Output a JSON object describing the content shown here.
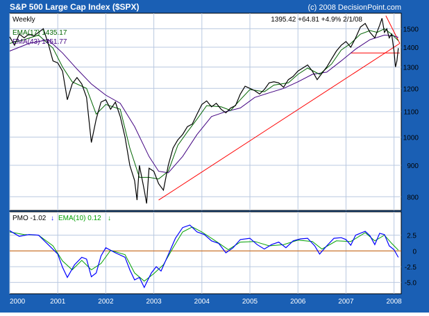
{
  "chart_data": {
    "type": "candlestick_with_indicator",
    "title": "S&P 500 Large Cap Index ($SPX)",
    "copyright": "(c) 2008 DecisionPoint.com",
    "period_label": "Weekly",
    "last_values_text": "1395.42  +64.81  +4.9%  2/1/08",
    "ema17_label": "EMA(17) 1435.17",
    "ema43_label": "EMA(43) 1451.77",
    "colors": {
      "frame": "#1a5fb4",
      "background": "#ffffff",
      "grid": "#b8c8e0",
      "price": "#000000",
      "ema17": "#006400",
      "ema43": "#400080",
      "trendline": "#ff0000",
      "pmo": "#0000ff",
      "pmo_signal": "#00a000",
      "zero_line": "#d06000"
    },
    "price_panel": {
      "y_scale": "log",
      "ylim": [
        760,
        1590
      ],
      "y_ticks": [
        800,
        900,
        1000,
        1100,
        1200,
        1300,
        1400,
        1500
      ],
      "weekly_closes": [
        [
          2000.0,
          1455
        ],
        [
          2000.1,
          1410
        ],
        [
          2000.2,
          1470
        ],
        [
          2000.3,
          1450
        ],
        [
          2000.4,
          1470
        ],
        [
          2000.5,
          1460
        ],
        [
          2000.6,
          1480
        ],
        [
          2000.7,
          1500
        ],
        [
          2000.8,
          1420
        ],
        [
          2000.9,
          1330
        ],
        [
          2001.0,
          1320
        ],
        [
          2001.1,
          1280
        ],
        [
          2001.2,
          1150
        ],
        [
          2001.3,
          1220
        ],
        [
          2001.4,
          1250
        ],
        [
          2001.5,
          1220
        ],
        [
          2001.6,
          1160
        ],
        [
          2001.7,
          980
        ],
        [
          2001.8,
          1070
        ],
        [
          2001.9,
          1140
        ],
        [
          2002.0,
          1150
        ],
        [
          2002.1,
          1110
        ],
        [
          2002.2,
          1140
        ],
        [
          2002.3,
          1080
        ],
        [
          2002.4,
          1000
        ],
        [
          2002.5,
          900
        ],
        [
          2002.6,
          850
        ],
        [
          2002.65,
          790
        ],
        [
          2002.7,
          900
        ],
        [
          2002.8,
          820
        ],
        [
          2002.85,
          780
        ],
        [
          2002.9,
          890
        ],
        [
          2003.0,
          880
        ],
        [
          2003.1,
          840
        ],
        [
          2003.2,
          820
        ],
        [
          2003.3,
          900
        ],
        [
          2003.4,
          960
        ],
        [
          2003.5,
          990
        ],
        [
          2003.6,
          1010
        ],
        [
          2003.7,
          1040
        ],
        [
          2003.8,
          1050
        ],
        [
          2003.9,
          1090
        ],
        [
          2004.0,
          1130
        ],
        [
          2004.1,
          1145
        ],
        [
          2004.2,
          1120
        ],
        [
          2004.3,
          1135
        ],
        [
          2004.4,
          1110
        ],
        [
          2004.5,
          1095
        ],
        [
          2004.6,
          1115
        ],
        [
          2004.7,
          1125
        ],
        [
          2004.8,
          1175
        ],
        [
          2004.9,
          1210
        ],
        [
          2005.0,
          1200
        ],
        [
          2005.1,
          1190
        ],
        [
          2005.2,
          1175
        ],
        [
          2005.3,
          1195
        ],
        [
          2005.4,
          1225
        ],
        [
          2005.5,
          1230
        ],
        [
          2005.6,
          1225
        ],
        [
          2005.7,
          1205
        ],
        [
          2005.8,
          1240
        ],
        [
          2005.9,
          1255
        ],
        [
          2006.0,
          1280
        ],
        [
          2006.1,
          1295
        ],
        [
          2006.2,
          1310
        ],
        [
          2006.3,
          1280
        ],
        [
          2006.4,
          1240
        ],
        [
          2006.5,
          1270
        ],
        [
          2006.6,
          1300
        ],
        [
          2006.7,
          1340
        ],
        [
          2006.8,
          1380
        ],
        [
          2006.9,
          1410
        ],
        [
          2007.0,
          1430
        ],
        [
          2007.1,
          1400
        ],
        [
          2007.2,
          1450
        ],
        [
          2007.3,
          1510
        ],
        [
          2007.4,
          1530
        ],
        [
          2007.5,
          1480
        ],
        [
          2007.6,
          1450
        ],
        [
          2007.7,
          1520
        ],
        [
          2007.75,
          1560
        ],
        [
          2007.8,
          1480
        ],
        [
          2007.85,
          1500
        ],
        [
          2007.9,
          1450
        ],
        [
          2007.95,
          1470
        ],
        [
          2008.0,
          1380
        ],
        [
          2008.03,
          1300
        ],
        [
          2008.06,
          1330
        ],
        [
          2008.09,
          1395
        ]
      ],
      "ema17": [
        [
          2000.0,
          1420
        ],
        [
          2000.3,
          1440
        ],
        [
          2000.6,
          1465
        ],
        [
          2000.9,
          1395
        ],
        [
          2001.1,
          1300
        ],
        [
          2001.3,
          1230
        ],
        [
          2001.6,
          1200
        ],
        [
          2001.8,
          1090
        ],
        [
          2002.0,
          1130
        ],
        [
          2002.3,
          1110
        ],
        [
          2002.5,
          960
        ],
        [
          2002.7,
          860
        ],
        [
          2002.9,
          860
        ],
        [
          2003.1,
          855
        ],
        [
          2003.3,
          880
        ],
        [
          2003.5,
          970
        ],
        [
          2003.7,
          1020
        ],
        [
          2003.9,
          1070
        ],
        [
          2004.1,
          1125
        ],
        [
          2004.4,
          1120
        ],
        [
          2004.6,
          1105
        ],
        [
          2004.8,
          1150
        ],
        [
          2005.0,
          1195
        ],
        [
          2005.3,
          1185
        ],
        [
          2005.5,
          1215
        ],
        [
          2005.8,
          1225
        ],
        [
          2006.0,
          1265
        ],
        [
          2006.2,
          1295
        ],
        [
          2006.45,
          1265
        ],
        [
          2006.7,
          1315
        ],
        [
          2006.9,
          1385
        ],
        [
          2007.1,
          1420
        ],
        [
          2007.3,
          1470
        ],
        [
          2007.5,
          1490
        ],
        [
          2007.65,
          1480
        ],
        [
          2007.8,
          1500
        ],
        [
          2007.95,
          1470
        ],
        [
          2008.09,
          1435
        ]
      ],
      "ema43": [
        [
          2000.0,
          1380
        ],
        [
          2000.4,
          1420
        ],
        [
          2000.8,
          1440
        ],
        [
          2001.1,
          1370
        ],
        [
          2001.4,
          1290
        ],
        [
          2001.7,
          1220
        ],
        [
          2002.0,
          1170
        ],
        [
          2002.3,
          1135
        ],
        [
          2002.6,
          1040
        ],
        [
          2002.9,
          930
        ],
        [
          2003.1,
          880
        ],
        [
          2003.3,
          875
        ],
        [
          2003.6,
          930
        ],
        [
          2003.9,
          1010
        ],
        [
          2004.2,
          1080
        ],
        [
          2004.5,
          1100
        ],
        [
          2004.8,
          1115
        ],
        [
          2005.1,
          1160
        ],
        [
          2005.4,
          1180
        ],
        [
          2005.7,
          1200
        ],
        [
          2006.0,
          1230
        ],
        [
          2006.3,
          1265
        ],
        [
          2006.6,
          1275
        ],
        [
          2006.9,
          1330
        ],
        [
          2007.2,
          1390
        ],
        [
          2007.5,
          1440
        ],
        [
          2007.8,
          1465
        ],
        [
          2008.0,
          1460
        ],
        [
          2008.09,
          1452
        ]
      ],
      "trendlines": [
        {
          "from": [
            2003.1,
            790
          ],
          "to": [
            2008.12,
            1420
          ]
        },
        {
          "from": [
            2007.1,
            1370
          ],
          "to": [
            2008.12,
            1370
          ]
        },
        {
          "from": [
            2007.83,
            1575
          ],
          "to": [
            2008.12,
            1420
          ]
        }
      ]
    },
    "pmo_panel": {
      "label": "PMO  -1.02",
      "signal_label": "EMA(10)  0.12",
      "ylim": [
        -6.8,
        6.2
      ],
      "y_ticks": [
        -5.0,
        -2.5,
        0,
        2.5
      ],
      "y_tick_labels": [
        "-5.0",
        "-2.5",
        "0",
        "2.5"
      ],
      "pmo": [
        [
          2000.0,
          3.2
        ],
        [
          2000.2,
          2.3
        ],
        [
          2000.4,
          2.6
        ],
        [
          2000.6,
          2.5
        ],
        [
          2000.8,
          1.0
        ],
        [
          2001.0,
          -0.5
        ],
        [
          2001.1,
          -2.6
        ],
        [
          2001.2,
          -4.2
        ],
        [
          2001.35,
          -2.2
        ],
        [
          2001.5,
          -1.0
        ],
        [
          2001.6,
          -1.3
        ],
        [
          2001.7,
          -4.1
        ],
        [
          2001.8,
          -3.5
        ],
        [
          2001.9,
          -0.8
        ],
        [
          2002.0,
          0.5
        ],
        [
          2002.2,
          -0.3
        ],
        [
          2002.4,
          -1.0
        ],
        [
          2002.5,
          -3.0
        ],
        [
          2002.6,
          -4.6
        ],
        [
          2002.7,
          -4.2
        ],
        [
          2002.8,
          -5.8
        ],
        [
          2002.85,
          -5.0
        ],
        [
          2002.95,
          -3.5
        ],
        [
          2003.05,
          -2.5
        ],
        [
          2003.15,
          -3.2
        ],
        [
          2003.3,
          -0.6
        ],
        [
          2003.45,
          2.0
        ],
        [
          2003.6,
          3.7
        ],
        [
          2003.75,
          4.1
        ],
        [
          2003.9,
          3.0
        ],
        [
          2004.05,
          2.6
        ],
        [
          2004.2,
          1.6
        ],
        [
          2004.35,
          1.2
        ],
        [
          2004.5,
          -0.3
        ],
        [
          2004.65,
          0.5
        ],
        [
          2004.8,
          1.8
        ],
        [
          2005.0,
          2.0
        ],
        [
          2005.15,
          1.0
        ],
        [
          2005.3,
          0.3
        ],
        [
          2005.45,
          1.0
        ],
        [
          2005.6,
          1.4
        ],
        [
          2005.75,
          0.5
        ],
        [
          2005.9,
          1.6
        ],
        [
          2006.05,
          1.9
        ],
        [
          2006.2,
          2.0
        ],
        [
          2006.35,
          0.8
        ],
        [
          2006.45,
          -0.5
        ],
        [
          2006.6,
          0.8
        ],
        [
          2006.75,
          2.0
        ],
        [
          2006.9,
          2.1
        ],
        [
          2007.0,
          1.8
        ],
        [
          2007.1,
          0.9
        ],
        [
          2007.2,
          2.5
        ],
        [
          2007.4,
          3.1
        ],
        [
          2007.5,
          2.4
        ],
        [
          2007.6,
          1.0
        ],
        [
          2007.7,
          2.8
        ],
        [
          2007.8,
          2.6
        ],
        [
          2007.9,
          0.8
        ],
        [
          2008.0,
          0.2
        ],
        [
          2008.09,
          -1.02
        ]
      ],
      "signal": [
        [
          2000.0,
          3.0
        ],
        [
          2000.3,
          2.6
        ],
        [
          2000.6,
          2.5
        ],
        [
          2000.9,
          0.8
        ],
        [
          2001.1,
          -1.6
        ],
        [
          2001.3,
          -3.0
        ],
        [
          2001.5,
          -1.5
        ],
        [
          2001.7,
          -3.0
        ],
        [
          2001.9,
          -2.0
        ],
        [
          2002.1,
          0.1
        ],
        [
          2002.4,
          -0.6
        ],
        [
          2002.6,
          -3.5
        ],
        [
          2002.8,
          -4.8
        ],
        [
          2003.0,
          -3.6
        ],
        [
          2003.2,
          -2.2
        ],
        [
          2003.4,
          0.5
        ],
        [
          2003.6,
          3.0
        ],
        [
          2003.8,
          3.8
        ],
        [
          2004.0,
          3.0
        ],
        [
          2004.3,
          1.5
        ],
        [
          2004.55,
          0.2
        ],
        [
          2004.8,
          1.4
        ],
        [
          2005.1,
          1.5
        ],
        [
          2005.4,
          0.8
        ],
        [
          2005.7,
          1.0
        ],
        [
          2006.0,
          1.7
        ],
        [
          2006.3,
          1.5
        ],
        [
          2006.5,
          0.3
        ],
        [
          2006.8,
          1.6
        ],
        [
          2007.1,
          1.5
        ],
        [
          2007.4,
          2.9
        ],
        [
          2007.6,
          1.6
        ],
        [
          2007.8,
          2.5
        ],
        [
          2007.95,
          1.2
        ],
        [
          2008.09,
          0.12
        ]
      ]
    },
    "x_axis": {
      "xlim": [
        2000.0,
        2008.15
      ],
      "ticks": [
        2000,
        2001,
        2002,
        2003,
        2004,
        2005,
        2006,
        2007,
        2008
      ],
      "tick_labels": [
        "2000",
        "2001",
        "2002",
        "2003",
        "2004",
        "2005",
        "2006",
        "2007",
        "2008"
      ]
    }
  }
}
